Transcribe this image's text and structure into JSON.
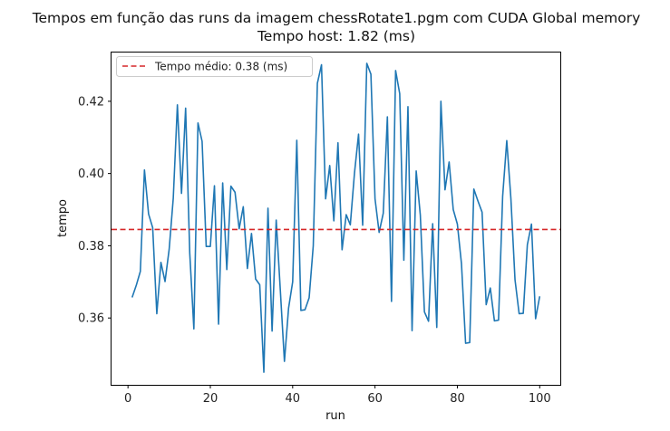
{
  "chart_data": {
    "type": "line",
    "title": "Tempos em função das runs da imagem chessRotate1.pgm com CUDA Global memory",
    "subtitle": "Tempo host: 1.82 (ms)",
    "xlabel": "run",
    "ylabel": "tempo",
    "xlim": [
      -4.0,
      105.0
    ],
    "ylim": [
      0.3415,
      0.4335
    ],
    "xticks": [
      0,
      20,
      40,
      60,
      80,
      100
    ],
    "xtick_labels": [
      "0",
      "20",
      "40",
      "60",
      "80",
      "100"
    ],
    "yticks": [
      0.36,
      0.38,
      0.4,
      0.42
    ],
    "ytick_labels": [
      "0.36",
      "0.38",
      "0.40",
      "0.42"
    ],
    "grid": false,
    "legend_position": "top-left",
    "series": [
      {
        "color": "#1f77b4",
        "x": [
          1,
          2,
          3,
          4,
          5,
          6,
          7,
          8,
          9,
          10,
          11,
          12,
          13,
          14,
          15,
          16,
          17,
          18,
          19,
          20,
          21,
          22,
          23,
          24,
          25,
          26,
          27,
          28,
          29,
          30,
          31,
          32,
          33,
          34,
          35,
          36,
          37,
          38,
          39,
          40,
          41,
          42,
          43,
          44,
          45,
          46,
          47,
          48,
          49,
          50,
          51,
          52,
          53,
          54,
          55,
          56,
          57,
          58,
          59,
          60,
          61,
          62,
          63,
          64,
          65,
          66,
          67,
          68,
          69,
          70,
          71,
          72,
          73,
          74,
          75,
          76,
          77,
          78,
          79,
          80,
          81,
          82,
          83,
          84,
          85,
          86,
          87,
          88,
          89,
          90,
          91,
          92,
          93,
          94,
          95,
          96,
          97,
          98,
          99,
          100
        ],
        "values": [
          0.3657,
          0.369,
          0.3729,
          0.401,
          0.3888,
          0.385,
          0.3612,
          0.3754,
          0.3701,
          0.379,
          0.3932,
          0.419,
          0.3945,
          0.4181,
          0.378,
          0.357,
          0.414,
          0.4089,
          0.3798,
          0.3798,
          0.3966,
          0.3583,
          0.3974,
          0.3734,
          0.3965,
          0.3948,
          0.3847,
          0.3908,
          0.3737,
          0.3834,
          0.3708,
          0.3692,
          0.345,
          0.3904,
          0.3564,
          0.3871,
          0.3677,
          0.348,
          0.3627,
          0.37,
          0.4092,
          0.3621,
          0.3623,
          0.3656,
          0.38,
          0.425,
          0.4301,
          0.393,
          0.4022,
          0.3869,
          0.4085,
          0.3789,
          0.3886,
          0.3858,
          0.4,
          0.4109,
          0.3857,
          0.4305,
          0.4275,
          0.393,
          0.3837,
          0.389,
          0.4157,
          0.3646,
          0.4285,
          0.4221,
          0.376,
          0.4185,
          0.3565,
          0.4007,
          0.3885,
          0.3617,
          0.3591,
          0.3861,
          0.3574,
          0.42,
          0.3955,
          0.4032,
          0.39,
          0.386,
          0.375,
          0.353,
          0.3532,
          0.3957,
          0.3924,
          0.3893,
          0.3637,
          0.3683,
          0.3592,
          0.3594,
          0.3937,
          0.4091,
          0.3931,
          0.3706,
          0.3612,
          0.3613,
          0.3803,
          0.386,
          0.3598,
          0.366
        ]
      }
    ],
    "reference_line": {
      "orientation": "horizontal",
      "y": 0.3845,
      "color": "#d62728",
      "style": "dashed",
      "label": "Tempo médio: 0.38 (ms)"
    }
  }
}
